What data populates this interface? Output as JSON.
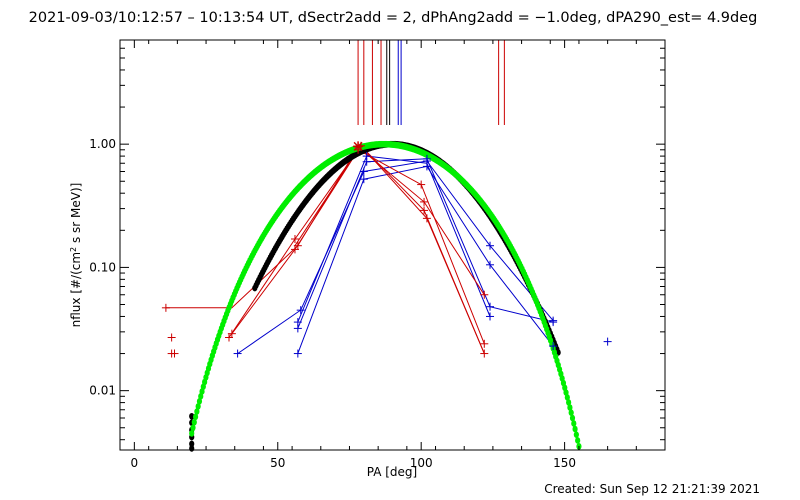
{
  "title": "2021-09-03/10:12:57 – 10:13:54 UT, dSectr2add = 2, dPhAng2add = −1.0deg, dPA290_est=  4.9deg",
  "footer": "Created: Sun Sep 12 21:21:39 2021",
  "chart_data": {
    "type": "scatter",
    "xlabel": "PA [deg]",
    "ylabel": "nflux [#/(cm^2 s sr MeV)]",
    "xlim": [
      -5,
      185
    ],
    "ylim": [
      0.0033,
      7
    ],
    "yscale": "log",
    "x_ticks": [
      0,
      50,
      100,
      150
    ],
    "y_ticks": [
      {
        "value": 0.01,
        "label": "0.01"
      },
      {
        "value": 0.1,
        "label": "0.10"
      },
      {
        "value": 1.0,
        "label": "1.00"
      }
    ],
    "grid": false,
    "colors": {
      "red": "#cc0000",
      "blue": "#0000cc",
      "black": "#000000",
      "green": "#00ee00"
    },
    "vertical_markers": [
      {
        "x": 78,
        "color": "red"
      },
      {
        "x": 80,
        "color": "red"
      },
      {
        "x": 83,
        "color": "red"
      },
      {
        "x": 86,
        "color": "red"
      },
      {
        "x": 88,
        "color": "black"
      },
      {
        "x": 89,
        "color": "black"
      },
      {
        "x": 92,
        "color": "blue"
      },
      {
        "x": 93,
        "color": "blue"
      },
      {
        "x": 127,
        "color": "red"
      },
      {
        "x": 129,
        "color": "red"
      }
    ],
    "series": [
      {
        "color": "red",
        "marker": "plus",
        "points": [
          [
            11,
            0.047
          ],
          [
            13,
            0.027
          ],
          [
            13,
            0.02
          ],
          [
            14,
            0.02
          ],
          [
            33,
            0.027
          ],
          [
            34,
            0.029
          ],
          [
            56,
            0.17
          ],
          [
            56,
            0.14
          ],
          [
            57,
            0.15
          ],
          [
            78,
            0.95
          ],
          [
            78,
            0.9
          ],
          [
            79,
            0.97
          ],
          [
            100,
            0.47
          ],
          [
            101,
            0.29
          ],
          [
            101,
            0.34
          ],
          [
            102,
            0.25
          ],
          [
            122,
            0.06
          ],
          [
            122,
            0.024
          ],
          [
            122,
            0.02
          ]
        ],
        "lines": [
          [
            [
              11,
              0.047
            ],
            [
              34,
              0.047
            ],
            [
              57,
              0.15
            ],
            [
              78,
              0.95
            ],
            [
              101,
              0.34
            ],
            [
              122,
              0.06
            ]
          ],
          [
            [
              33,
              0.027
            ],
            [
              56,
              0.17
            ],
            [
              78,
              0.9
            ],
            [
              100,
              0.47
            ],
            [
              122,
              0.024
            ]
          ],
          [
            [
              34,
              0.029
            ],
            [
              56,
              0.14
            ],
            [
              79,
              0.97
            ],
            [
              102,
              0.25
            ],
            [
              122,
              0.02
            ]
          ],
          [
            [
              56,
              0.15
            ],
            [
              79,
              0.97
            ],
            [
              101,
              0.29
            ],
            [
              122,
              0.02
            ]
          ]
        ]
      },
      {
        "color": "blue",
        "marker": "plus",
        "points": [
          [
            36,
            0.02
          ],
          [
            57,
            0.02
          ],
          [
            57,
            0.032
          ],
          [
            57,
            0.036
          ],
          [
            58,
            0.045
          ],
          [
            80,
            0.52
          ],
          [
            80,
            0.6
          ],
          [
            81,
            0.72
          ],
          [
            81,
            0.8
          ],
          [
            102,
            0.73
          ],
          [
            102,
            0.76
          ],
          [
            102,
            0.66
          ],
          [
            124,
            0.15
          ],
          [
            124,
            0.105
          ],
          [
            124,
            0.048
          ],
          [
            124,
            0.04
          ],
          [
            146,
            0.037
          ],
          [
            146,
            0.023
          ],
          [
            146,
            0.036
          ],
          [
            165,
            0.025
          ]
        ],
        "lines": [
          [
            [
              36,
              0.02
            ],
            [
              58,
              0.045
            ],
            [
              80,
              0.6
            ],
            [
              102,
              0.73
            ],
            [
              124,
              0.15
            ],
            [
              146,
              0.037
            ]
          ],
          [
            [
              57,
              0.02
            ],
            [
              80,
              0.52
            ],
            [
              102,
              0.66
            ],
            [
              124,
              0.105
            ],
            [
              146,
              0.023
            ]
          ],
          [
            [
              57,
              0.032
            ],
            [
              81,
              0.72
            ],
            [
              102,
              0.76
            ],
            [
              124,
              0.048
            ],
            [
              146,
              0.036
            ]
          ],
          [
            [
              57,
              0.036
            ],
            [
              81,
              0.8
            ],
            [
              102,
              0.7
            ],
            [
              124,
              0.04
            ]
          ]
        ]
      },
      {
        "color": "black",
        "marker": "dot",
        "curve": {
          "kind": "gaussian",
          "center": 90.0,
          "sigma": 20.7,
          "peak": 1.0,
          "x_range": [
            42,
            148
          ]
        },
        "extra_points": [
          [
            20,
            0.0062
          ],
          [
            20,
            0.0055
          ],
          [
            20,
            0.0048
          ],
          [
            20,
            0.0042
          ],
          [
            20,
            0.0037
          ],
          [
            20,
            0.0034
          ]
        ]
      },
      {
        "color": "green",
        "marker": "dot",
        "curve": {
          "kind": "cosine_power",
          "center": 87.0,
          "peak": 1.0,
          "power": 5.75,
          "x_range": [
            20,
            160
          ]
        }
      }
    ]
  }
}
